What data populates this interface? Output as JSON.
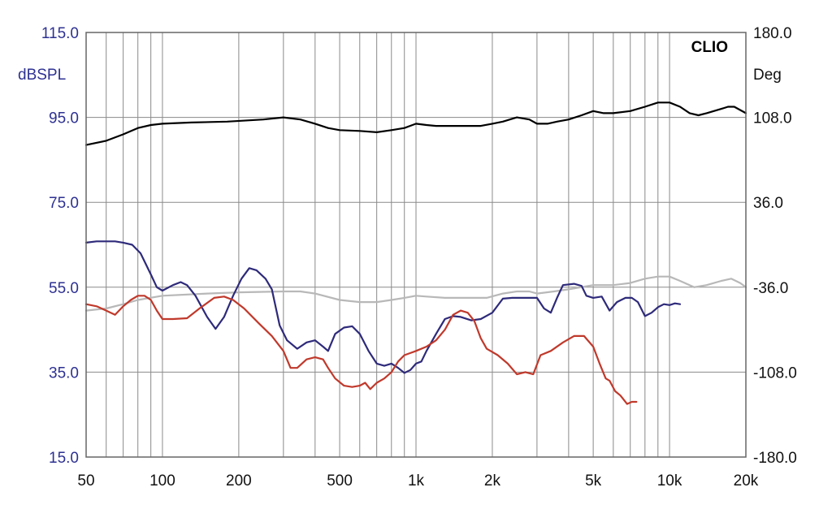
{
  "chart_data": {
    "type": "line",
    "brand": "CLIO",
    "x_scale": "log",
    "xlim": [
      50,
      20000
    ],
    "x_ticks": [
      50,
      100,
      200,
      500,
      1000,
      2000,
      5000,
      10000,
      20000
    ],
    "x_tick_labels": [
      "50",
      "100",
      "200",
      "500",
      "1k",
      "2k",
      "5k",
      "10k",
      "20k"
    ],
    "left_axis": {
      "unit": "dBSPL",
      "range": [
        15,
        115
      ],
      "ticks": [
        15,
        35,
        55,
        75,
        95,
        115
      ],
      "tick_labels": [
        "15.0",
        "35.0",
        "55.0",
        "75.0",
        "95.0",
        "115.0"
      ],
      "color": "#2e3192"
    },
    "right_axis": {
      "unit": "Deg",
      "range": [
        -180,
        180
      ],
      "ticks": [
        -180,
        -108,
        -36,
        36,
        108,
        180
      ],
      "tick_labels": [
        "-180.0",
        "-108.0",
        "-36.0",
        "36.0",
        "108.0",
        "180.0"
      ]
    },
    "grid": true,
    "series": [
      {
        "color": "#000000",
        "points": [
          [
            50,
            88.5
          ],
          [
            60,
            89.5
          ],
          [
            70,
            91
          ],
          [
            80,
            92.5
          ],
          [
            90,
            93.2
          ],
          [
            100,
            93.5
          ],
          [
            130,
            93.8
          ],
          [
            180,
            94
          ],
          [
            250,
            94.5
          ],
          [
            300,
            95
          ],
          [
            350,
            94.5
          ],
          [
            400,
            93.5
          ],
          [
            450,
            92.5
          ],
          [
            500,
            92
          ],
          [
            600,
            91.8
          ],
          [
            700,
            91.5
          ],
          [
            800,
            92
          ],
          [
            900,
            92.5
          ],
          [
            1000,
            93.5
          ],
          [
            1100,
            93.2
          ],
          [
            1200,
            93
          ],
          [
            1500,
            93
          ],
          [
            1800,
            93
          ],
          [
            2000,
            93.5
          ],
          [
            2200,
            94
          ],
          [
            2500,
            95
          ],
          [
            2800,
            94.5
          ],
          [
            3000,
            93.5
          ],
          [
            3300,
            93.5
          ],
          [
            3600,
            94
          ],
          [
            4000,
            94.5
          ],
          [
            4500,
            95.5
          ],
          [
            5000,
            96.5
          ],
          [
            5500,
            96
          ],
          [
            6000,
            96
          ],
          [
            7000,
            96.5
          ],
          [
            8000,
            97.5
          ],
          [
            9000,
            98.5
          ],
          [
            10000,
            98.5
          ],
          [
            11000,
            97.5
          ],
          [
            12000,
            96
          ],
          [
            13000,
            95.5
          ],
          [
            14000,
            96
          ],
          [
            16000,
            97
          ],
          [
            17000,
            97.5
          ],
          [
            18000,
            97.5
          ],
          [
            20000,
            96
          ]
        ]
      },
      {
        "color": "#b8b8b8",
        "points": [
          [
            50,
            49.5
          ],
          [
            60,
            50
          ],
          [
            70,
            51
          ],
          [
            80,
            52
          ],
          [
            100,
            53
          ],
          [
            150,
            53.5
          ],
          [
            200,
            53.8
          ],
          [
            300,
            54
          ],
          [
            350,
            54
          ],
          [
            400,
            53.5
          ],
          [
            500,
            52
          ],
          [
            600,
            51.5
          ],
          [
            700,
            51.5
          ],
          [
            800,
            52
          ],
          [
            900,
            52.5
          ],
          [
            1000,
            53
          ],
          [
            1100,
            52.8
          ],
          [
            1300,
            52.5
          ],
          [
            1600,
            52.5
          ],
          [
            1900,
            52.5
          ],
          [
            2200,
            53.5
          ],
          [
            2500,
            54
          ],
          [
            2800,
            54
          ],
          [
            3000,
            53.5
          ],
          [
            3500,
            54
          ],
          [
            4000,
            54.5
          ],
          [
            5000,
            55.5
          ],
          [
            6000,
            55.5
          ],
          [
            7000,
            56
          ],
          [
            8000,
            57
          ],
          [
            9000,
            57.5
          ],
          [
            10000,
            57.5
          ],
          [
            11000,
            56.5
          ],
          [
            12500,
            55
          ],
          [
            14000,
            55.5
          ],
          [
            16000,
            56.5
          ],
          [
            17500,
            57
          ],
          [
            19000,
            56
          ],
          [
            20000,
            55
          ]
        ]
      },
      {
        "color": "#2e2a7a",
        "points": [
          [
            50,
            65.5
          ],
          [
            55,
            65.8
          ],
          [
            60,
            65.8
          ],
          [
            65,
            65.8
          ],
          [
            70,
            65.5
          ],
          [
            76,
            65
          ],
          [
            82,
            63
          ],
          [
            90,
            58
          ],
          [
            95,
            55
          ],
          [
            100,
            54.2
          ],
          [
            110,
            55.5
          ],
          [
            118,
            56.2
          ],
          [
            125,
            55.5
          ],
          [
            135,
            53
          ],
          [
            150,
            48
          ],
          [
            162,
            45.2
          ],
          [
            175,
            48
          ],
          [
            190,
            53
          ],
          [
            205,
            57
          ],
          [
            220,
            59.5
          ],
          [
            235,
            59
          ],
          [
            255,
            57
          ],
          [
            270,
            54.5
          ],
          [
            290,
            46
          ],
          [
            310,
            42.5
          ],
          [
            340,
            40.5
          ],
          [
            370,
            42
          ],
          [
            400,
            42.5
          ],
          [
            430,
            41
          ],
          [
            450,
            40
          ],
          [
            480,
            44
          ],
          [
            520,
            45.5
          ],
          [
            560,
            45.8
          ],
          [
            600,
            44
          ],
          [
            650,
            40
          ],
          [
            700,
            37
          ],
          [
            750,
            36.5
          ],
          [
            800,
            37
          ],
          [
            850,
            36
          ],
          [
            900,
            34.8
          ],
          [
            950,
            35.5
          ],
          [
            1000,
            37
          ],
          [
            1050,
            37.5
          ],
          [
            1100,
            40
          ],
          [
            1200,
            44
          ],
          [
            1300,
            47.5
          ],
          [
            1400,
            48.2
          ],
          [
            1500,
            48
          ],
          [
            1650,
            47.2
          ],
          [
            1800,
            47.5
          ],
          [
            2000,
            49
          ],
          [
            2200,
            52.3
          ],
          [
            2400,
            52.5
          ],
          [
            2600,
            52.5
          ],
          [
            2800,
            52.5
          ],
          [
            3000,
            52.5
          ],
          [
            3200,
            50
          ],
          [
            3400,
            49
          ],
          [
            3600,
            52.5
          ],
          [
            3800,
            55.5
          ],
          [
            4200,
            55.8
          ],
          [
            4500,
            55.3
          ],
          [
            4700,
            53
          ],
          [
            5000,
            52.5
          ],
          [
            5400,
            52.8
          ],
          [
            5800,
            49.5
          ],
          [
            6200,
            51.5
          ],
          [
            6700,
            52.5
          ],
          [
            7100,
            52.5
          ],
          [
            7500,
            51.5
          ],
          [
            8000,
            48.2
          ],
          [
            8500,
            49
          ],
          [
            9000,
            50.3
          ],
          [
            9500,
            51
          ],
          [
            10000,
            50.8
          ],
          [
            10500,
            51.2
          ],
          [
            11000,
            51
          ]
        ]
      },
      {
        "color": "#c0392b",
        "points": [
          [
            50,
            51
          ],
          [
            55,
            50.5
          ],
          [
            60,
            49.5
          ],
          [
            65,
            48.5
          ],
          [
            70,
            50.5
          ],
          [
            75,
            52
          ],
          [
            80,
            53
          ],
          [
            85,
            53
          ],
          [
            90,
            52
          ],
          [
            95,
            49.5
          ],
          [
            100,
            47.5
          ],
          [
            110,
            47.5
          ],
          [
            125,
            47.7
          ],
          [
            140,
            50
          ],
          [
            160,
            52.5
          ],
          [
            175,
            52.8
          ],
          [
            190,
            52
          ],
          [
            210,
            50
          ],
          [
            240,
            46.5
          ],
          [
            270,
            43.5
          ],
          [
            300,
            40
          ],
          [
            320,
            36
          ],
          [
            340,
            36
          ],
          [
            370,
            38
          ],
          [
            400,
            38.5
          ],
          [
            430,
            38
          ],
          [
            450,
            36
          ],
          [
            480,
            33.5
          ],
          [
            520,
            31.8
          ],
          [
            560,
            31.5
          ],
          [
            600,
            31.8
          ],
          [
            630,
            32.5
          ],
          [
            660,
            31
          ],
          [
            700,
            32.5
          ],
          [
            750,
            33.5
          ],
          [
            800,
            35
          ],
          [
            850,
            37.5
          ],
          [
            900,
            39
          ],
          [
            950,
            39.5
          ],
          [
            1000,
            40
          ],
          [
            1100,
            41
          ],
          [
            1200,
            42.5
          ],
          [
            1300,
            45
          ],
          [
            1400,
            48.5
          ],
          [
            1500,
            49.5
          ],
          [
            1600,
            49
          ],
          [
            1700,
            47
          ],
          [
            1800,
            43
          ],
          [
            1900,
            40.5
          ],
          [
            2100,
            39
          ],
          [
            2300,
            37
          ],
          [
            2500,
            34.5
          ],
          [
            2700,
            35
          ],
          [
            2900,
            34.5
          ],
          [
            3100,
            39
          ],
          [
            3400,
            40
          ],
          [
            3800,
            42
          ],
          [
            4200,
            43.5
          ],
          [
            4600,
            43.5
          ],
          [
            5000,
            41
          ],
          [
            5300,
            37
          ],
          [
            5600,
            33.5
          ],
          [
            5800,
            33
          ],
          [
            6100,
            30.5
          ],
          [
            6400,
            29.5
          ],
          [
            6800,
            27.5
          ],
          [
            7100,
            28
          ],
          [
            7400,
            28
          ]
        ]
      }
    ]
  }
}
